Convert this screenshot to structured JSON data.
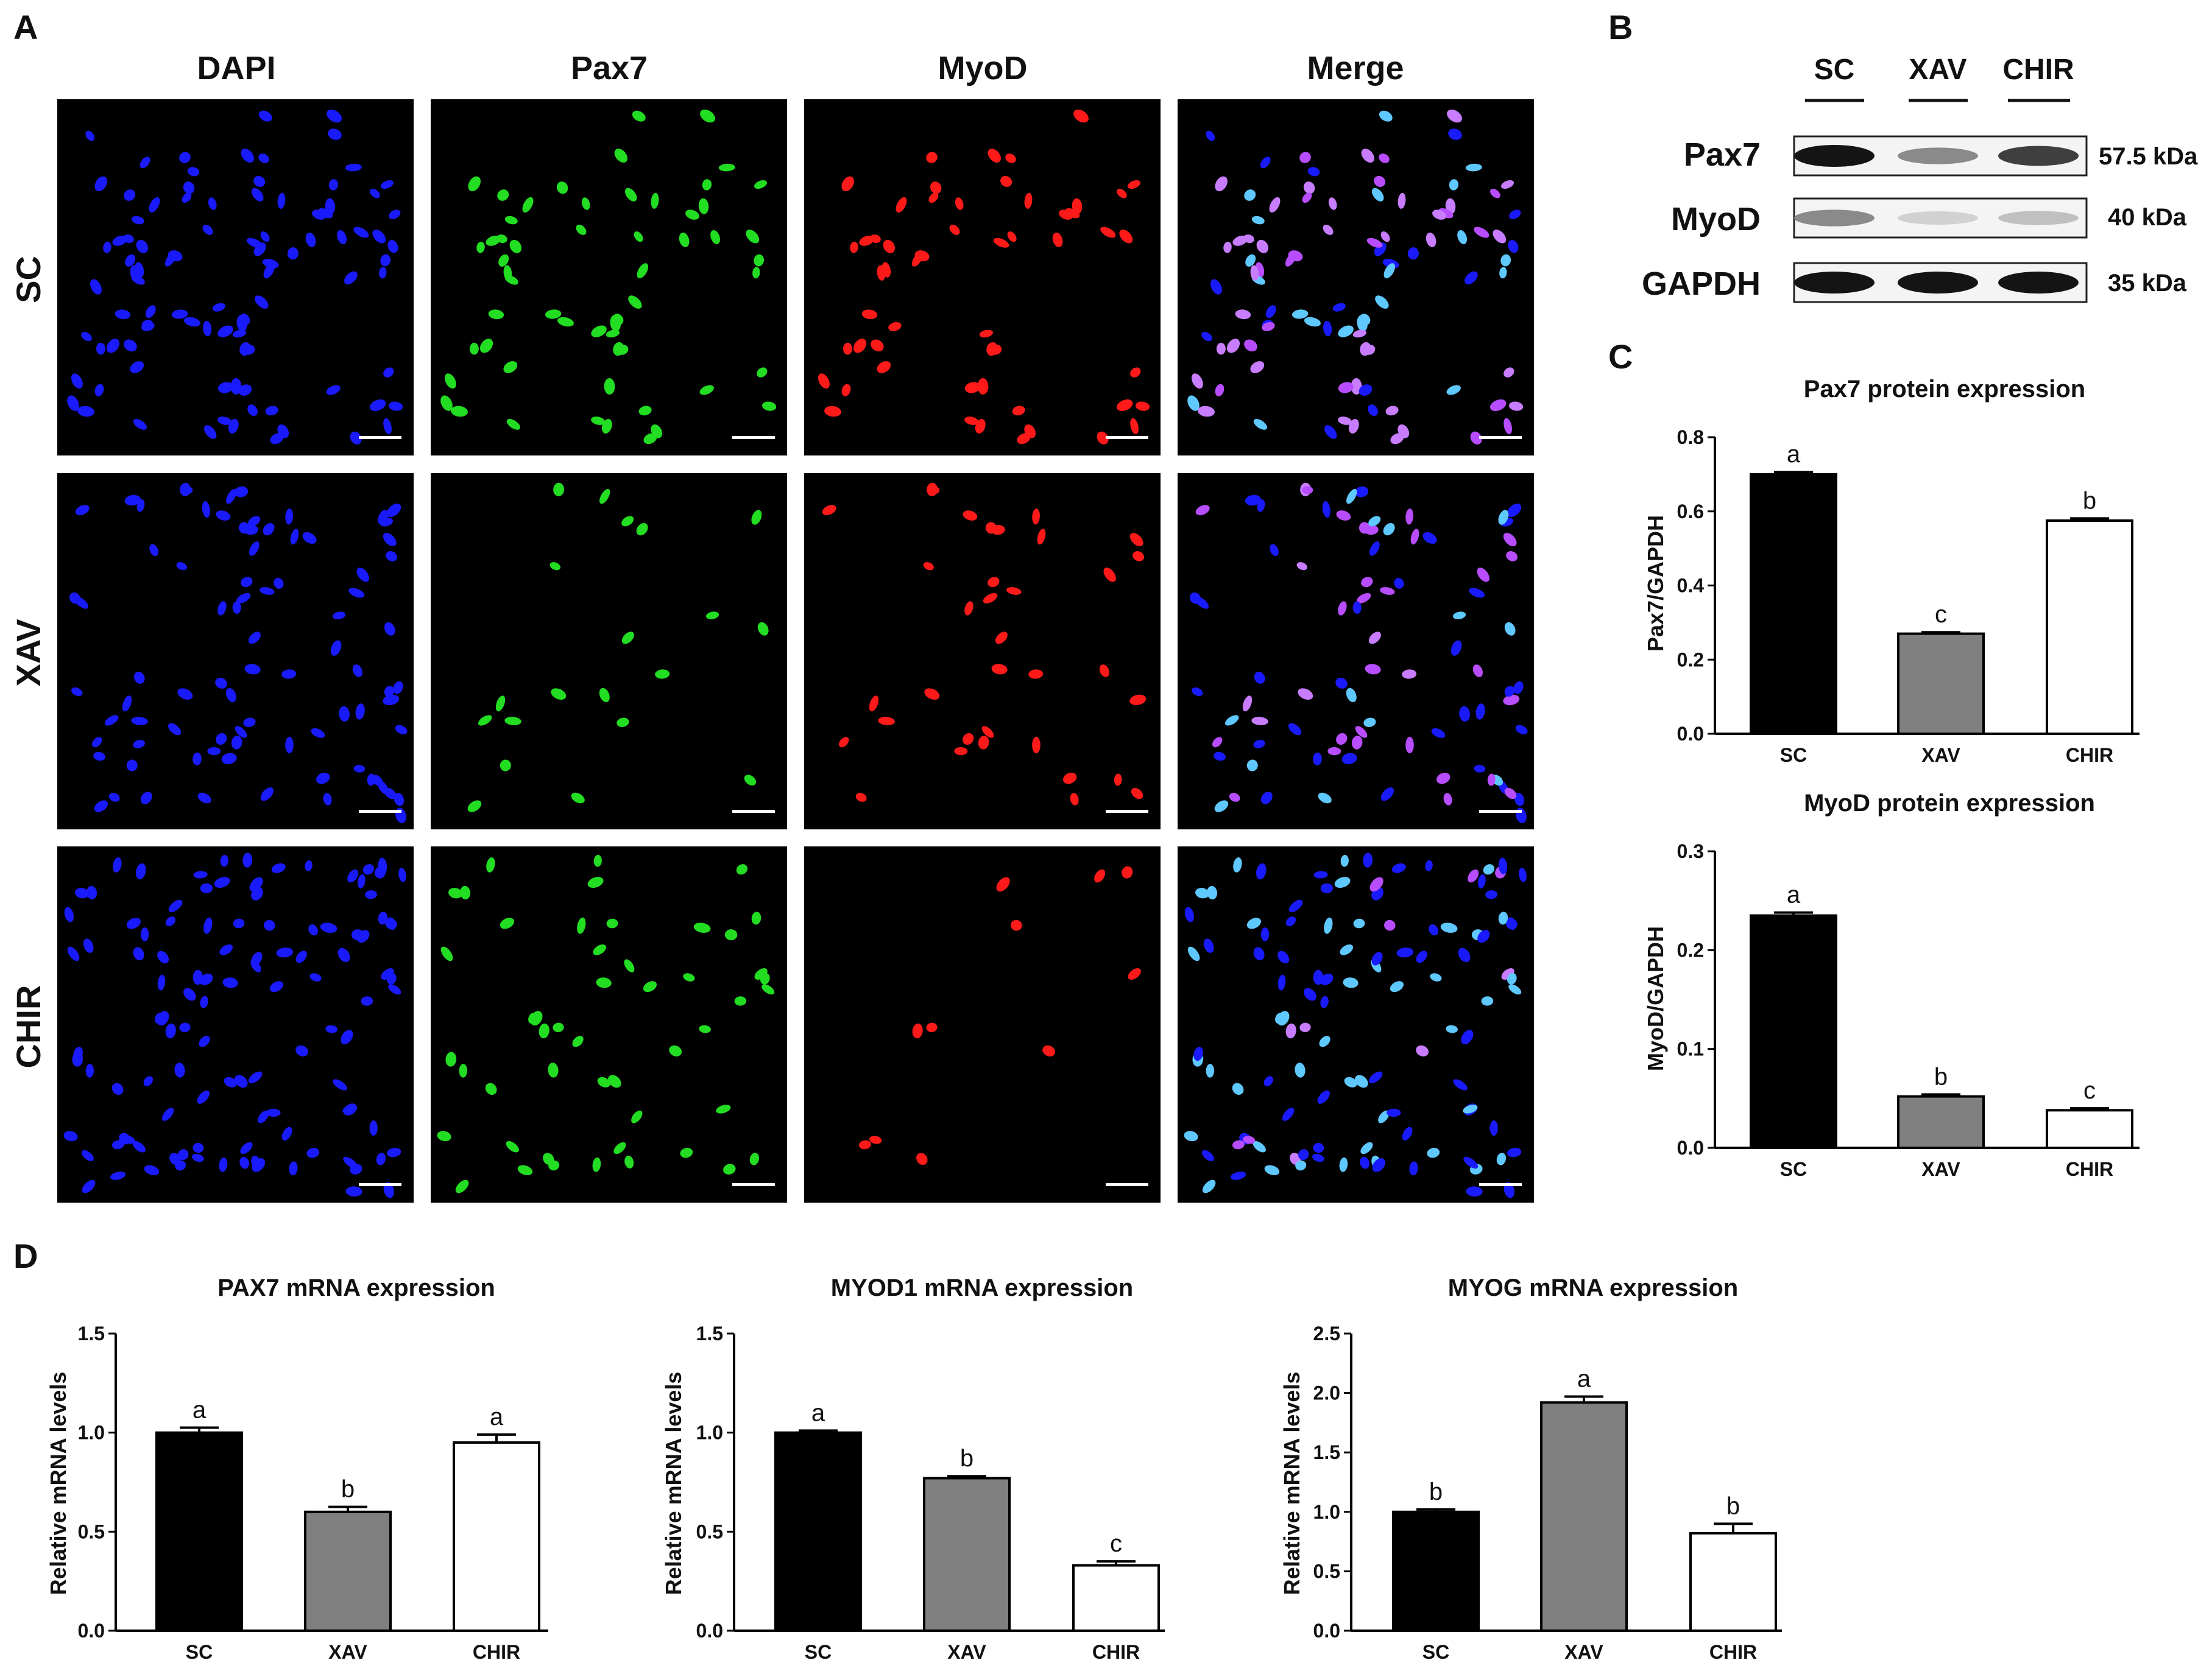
{
  "panel_letters": {
    "a": "A",
    "b": "B",
    "c": "C",
    "d": "D"
  },
  "panel_a": {
    "channels": [
      "DAPI",
      "Pax7",
      "MyoD",
      "Merge"
    ],
    "groups": [
      "SC",
      "XAV",
      "CHIR"
    ],
    "channel_colors": {
      "DAPI": "#1a1aff",
      "Pax7": "#22dd22",
      "MyoD": "#ff1a1a"
    },
    "nuclei_density": {
      "SC": 0.85,
      "XAV": 0.75,
      "CHIR": 1.0
    },
    "pax7_fraction": {
      "SC": 0.6,
      "XAV": 0.25,
      "CHIR": 0.45
    },
    "myod_fraction": {
      "SC": 0.6,
      "XAV": 0.3,
      "CHIR": 0.08
    }
  },
  "panel_b": {
    "lanes": [
      "SC",
      "XAV",
      "CHIR"
    ],
    "rows": [
      {
        "label": "Pax7",
        "size": "57.5 kDa",
        "intensity": [
          1.0,
          0.45,
          0.8
        ]
      },
      {
        "label": "MyoD",
        "size": "40 kDa",
        "intensity": [
          0.45,
          0.12,
          0.2
        ]
      },
      {
        "label": "GAPDH",
        "size": "35 kDa",
        "intensity": [
          1.0,
          1.0,
          1.0
        ]
      }
    ]
  },
  "chart_data": [
    {
      "type": "bar",
      "panel": "C",
      "title": "Pax7 protein expression",
      "ylabel": "Pax7/GAPDH",
      "categories": [
        "SC",
        "XAV",
        "CHIR"
      ],
      "values": [
        0.7,
        0.27,
        0.575
      ],
      "errors": [
        0.006,
        0.004,
        0.006
      ],
      "sig_labels": [
        "a",
        "c",
        "b"
      ],
      "ylim": [
        0.0,
        0.8
      ],
      "yticks": [
        "0.0",
        "0.2",
        "0.4",
        "0.6",
        "0.8"
      ],
      "colors": [
        "#000000",
        "#808080",
        "#ffffff"
      ]
    },
    {
      "type": "bar",
      "panel": "C",
      "title": "MyoD protein expression",
      "ylabel": "MyoD/GAPDH",
      "categories": [
        "SC",
        "XAV",
        "CHIR"
      ],
      "values": [
        0.235,
        0.052,
        0.038
      ],
      "errors": [
        0.003,
        0.002,
        0.002
      ],
      "sig_labels": [
        "a",
        "b",
        "c"
      ],
      "ylim": [
        0.0,
        0.3
      ],
      "yticks": [
        "0.0",
        "0.1",
        "0.2",
        "0.3"
      ],
      "colors": [
        "#000000",
        "#808080",
        "#ffffff"
      ]
    },
    {
      "type": "bar",
      "panel": "D",
      "title": "PAX7 mRNA expression",
      "ylabel": "Relative mRNA levels",
      "categories": [
        "SC",
        "XAV",
        "CHIR"
      ],
      "values": [
        1.0,
        0.6,
        0.95
      ],
      "errors": [
        0.025,
        0.025,
        0.04
      ],
      "sig_labels": [
        "a",
        "b",
        "a"
      ],
      "ylim": [
        0.0,
        1.5
      ],
      "yticks": [
        "0.0",
        "0.5",
        "1.0",
        "1.5"
      ],
      "colors": [
        "#000000",
        "#808080",
        "#ffffff"
      ]
    },
    {
      "type": "bar",
      "panel": "D",
      "title": "MYOD1 mRNA expression",
      "ylabel": "Relative mRNA levels",
      "categories": [
        "SC",
        "XAV",
        "CHIR"
      ],
      "values": [
        1.0,
        0.77,
        0.33
      ],
      "errors": [
        0.01,
        0.01,
        0.02
      ],
      "sig_labels": [
        "a",
        "b",
        "c"
      ],
      "ylim": [
        0.0,
        1.5
      ],
      "yticks": [
        "0.0",
        "0.5",
        "1.0",
        "1.5"
      ],
      "colors": [
        "#000000",
        "#808080",
        "#ffffff"
      ]
    },
    {
      "type": "bar",
      "panel": "D",
      "title": "MYOG mRNA expression",
      "ylabel": "Relative mRNA levels",
      "categories": [
        "SC",
        "XAV",
        "CHIR"
      ],
      "values": [
        1.0,
        1.92,
        0.82
      ],
      "errors": [
        0.02,
        0.05,
        0.08
      ],
      "sig_labels": [
        "b",
        "a",
        "b"
      ],
      "ylim": [
        0.0,
        2.5
      ],
      "yticks": [
        "0.0",
        "0.5",
        "1.0",
        "1.5",
        "2.0",
        "2.5"
      ],
      "colors": [
        "#000000",
        "#808080",
        "#ffffff"
      ]
    }
  ]
}
